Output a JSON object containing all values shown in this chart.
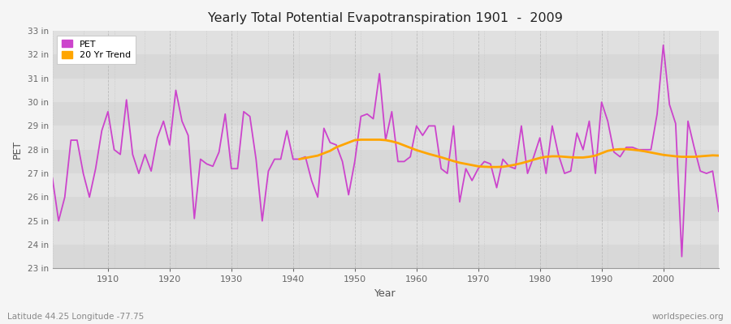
{
  "title": "Yearly Total Potential Evapotranspiration 1901  -  2009",
  "xlabel": "Year",
  "ylabel": "PET",
  "subtitle_left": "Latitude 44.25 Longitude -77.75",
  "subtitle_right": "worldspecies.org",
  "pet_color": "#CC44CC",
  "trend_color": "#FFA500",
  "bg_color": "#DCDCDC",
  "fig_color": "#F5F5F5",
  "ylim_bottom": 23,
  "ylim_top": 33,
  "xlim_left": 1901,
  "xlim_right": 2009,
  "xtick_positions": [
    1910,
    1920,
    1930,
    1940,
    1950,
    1960,
    1970,
    1980,
    1990,
    2000
  ],
  "pet_years": [
    1901,
    1902,
    1903,
    1904,
    1905,
    1906,
    1907,
    1908,
    1909,
    1910,
    1911,
    1912,
    1913,
    1914,
    1915,
    1916,
    1917,
    1918,
    1919,
    1920,
    1921,
    1922,
    1923,
    1924,
    1925,
    1926,
    1927,
    1928,
    1929,
    1930,
    1931,
    1932,
    1933,
    1934,
    1935,
    1936,
    1937,
    1938,
    1939,
    1940,
    1941,
    1942,
    1943,
    1944,
    1945,
    1946,
    1947,
    1948,
    1949,
    1950,
    1951,
    1952,
    1953,
    1954,
    1955,
    1956,
    1957,
    1958,
    1959,
    1960,
    1961,
    1962,
    1963,
    1964,
    1965,
    1966,
    1967,
    1968,
    1969,
    1970,
    1971,
    1972,
    1973,
    1974,
    1975,
    1976,
    1977,
    1978,
    1979,
    1980,
    1981,
    1982,
    1983,
    1984,
    1985,
    1986,
    1987,
    1988,
    1989,
    1990,
    1991,
    1992,
    1993,
    1994,
    1995,
    1996,
    1997,
    1998,
    1999,
    2000,
    2001,
    2002,
    2003,
    2004,
    2005,
    2006,
    2007,
    2008,
    2009
  ],
  "pet_values": [
    26.8,
    25.0,
    26.0,
    28.4,
    28.4,
    27.0,
    26.0,
    27.2,
    28.8,
    29.6,
    28.0,
    27.8,
    30.1,
    27.8,
    27.0,
    27.8,
    27.1,
    28.5,
    29.2,
    28.2,
    30.5,
    29.2,
    28.6,
    25.1,
    27.6,
    27.4,
    27.3,
    27.9,
    29.5,
    27.2,
    27.2,
    29.6,
    29.4,
    27.6,
    25.0,
    27.1,
    27.6,
    27.6,
    28.8,
    27.6,
    27.6,
    27.7,
    26.7,
    26.0,
    28.9,
    28.3,
    28.2,
    27.5,
    26.1,
    27.5,
    29.4,
    29.5,
    29.3,
    31.2,
    28.4,
    29.6,
    27.5,
    27.5,
    27.7,
    29.0,
    28.6,
    29.0,
    29.0,
    27.2,
    27.0,
    29.0,
    25.8,
    27.2,
    26.7,
    27.2,
    27.5,
    27.4,
    26.4,
    27.6,
    27.3,
    27.2,
    29.0,
    27.0,
    27.7,
    28.5,
    27.0,
    29.0,
    27.8,
    27.0,
    27.1,
    28.7,
    28.0,
    29.2,
    27.0,
    30.0,
    29.2,
    27.9,
    27.7,
    28.1,
    28.1,
    28.0,
    28.0,
    28.0,
    29.5,
    32.4,
    29.9,
    29.1,
    23.5,
    29.2,
    28.1,
    27.1,
    27.0,
    27.1,
    25.4
  ],
  "trend_years": [
    1941,
    1942,
    1943,
    1944,
    1945,
    1946,
    1947,
    1948,
    1949,
    1950,
    1951,
    1952,
    1953,
    1954,
    1955,
    1956,
    1957,
    1958,
    1959,
    1960,
    1961,
    1962,
    1963,
    1964,
    1965,
    1966,
    1967,
    1968,
    1969,
    1970,
    1971,
    1972,
    1973,
    1974,
    1975,
    1976,
    1977,
    1978,
    1979,
    1980,
    1981,
    1982,
    1983,
    1984,
    1985,
    1986,
    1987,
    1988,
    1989,
    1990,
    1991,
    1992,
    1993,
    1994,
    1995,
    1996,
    1997,
    1998,
    1999,
    2000,
    2001,
    2002,
    2003,
    2004,
    2005,
    2006,
    2007,
    2008,
    2009
  ],
  "trend_values": [
    27.6,
    27.65,
    27.7,
    27.75,
    27.85,
    27.95,
    28.1,
    28.2,
    28.3,
    28.4,
    28.42,
    28.42,
    28.42,
    28.42,
    28.4,
    28.35,
    28.28,
    28.18,
    28.08,
    27.98,
    27.9,
    27.82,
    27.75,
    27.68,
    27.6,
    27.52,
    27.45,
    27.4,
    27.35,
    27.3,
    27.28,
    27.27,
    27.27,
    27.28,
    27.32,
    27.37,
    27.43,
    27.5,
    27.58,
    27.65,
    27.7,
    27.72,
    27.72,
    27.7,
    27.68,
    27.67,
    27.67,
    27.7,
    27.75,
    27.85,
    27.95,
    28.0,
    28.02,
    28.02,
    28.0,
    27.97,
    27.93,
    27.88,
    27.83,
    27.78,
    27.75,
    27.72,
    27.7,
    27.7,
    27.7,
    27.72,
    27.74,
    27.76,
    27.75
  ]
}
